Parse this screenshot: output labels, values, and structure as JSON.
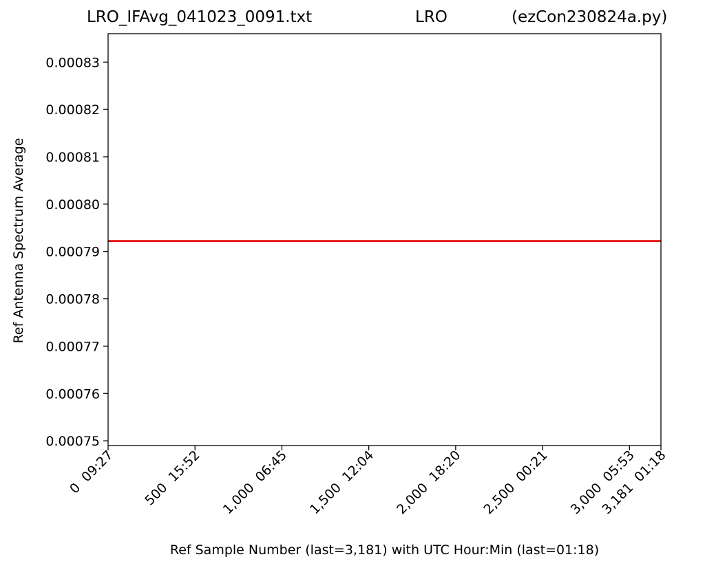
{
  "chart_data": {
    "type": "line",
    "title": {
      "left": "LRO_IFAvg_041023_0091.txt",
      "center": "LRO",
      "right": "(ezCon230824a.py)"
    },
    "xlabel": "Ref Sample Number (last=3,181) with UTC Hour:Min (last=01:18)",
    "ylabel": "Ref Antenna Spectrum Average",
    "xlim": [
      0,
      3181
    ],
    "ylim": [
      0.000749,
      0.000836
    ],
    "x_ticks": [
      {
        "value": 0,
        "label": "0  09:27"
      },
      {
        "value": 500,
        "label": "500  15:52"
      },
      {
        "value": 1000,
        "label": "1,000  06:45"
      },
      {
        "value": 1500,
        "label": "1,500  12:04"
      },
      {
        "value": 2000,
        "label": "2,000  18:20"
      },
      {
        "value": 2500,
        "label": "2,500  00:21"
      },
      {
        "value": 3000,
        "label": "3,000  05:53"
      },
      {
        "value": 3181,
        "label": "3,181  01:18"
      }
    ],
    "y_ticks": [
      {
        "value": 0.00075,
        "label": "0.00075"
      },
      {
        "value": 0.00076,
        "label": "0.00076"
      },
      {
        "value": 0.00077,
        "label": "0.00077"
      },
      {
        "value": 0.00078,
        "label": "0.00078"
      },
      {
        "value": 0.00079,
        "label": "0.00079"
      },
      {
        "value": 0.0008,
        "label": "0.00080"
      },
      {
        "value": 0.00081,
        "label": "0.00081"
      },
      {
        "value": 0.00082,
        "label": "0.00082"
      },
      {
        "value": 0.00083,
        "label": "0.00083"
      }
    ],
    "grid": false,
    "series": [
      {
        "color": "#e00000",
        "x": [
          0,
          3181
        ],
        "y": [
          0.0007922,
          0.0007922
        ]
      }
    ]
  }
}
